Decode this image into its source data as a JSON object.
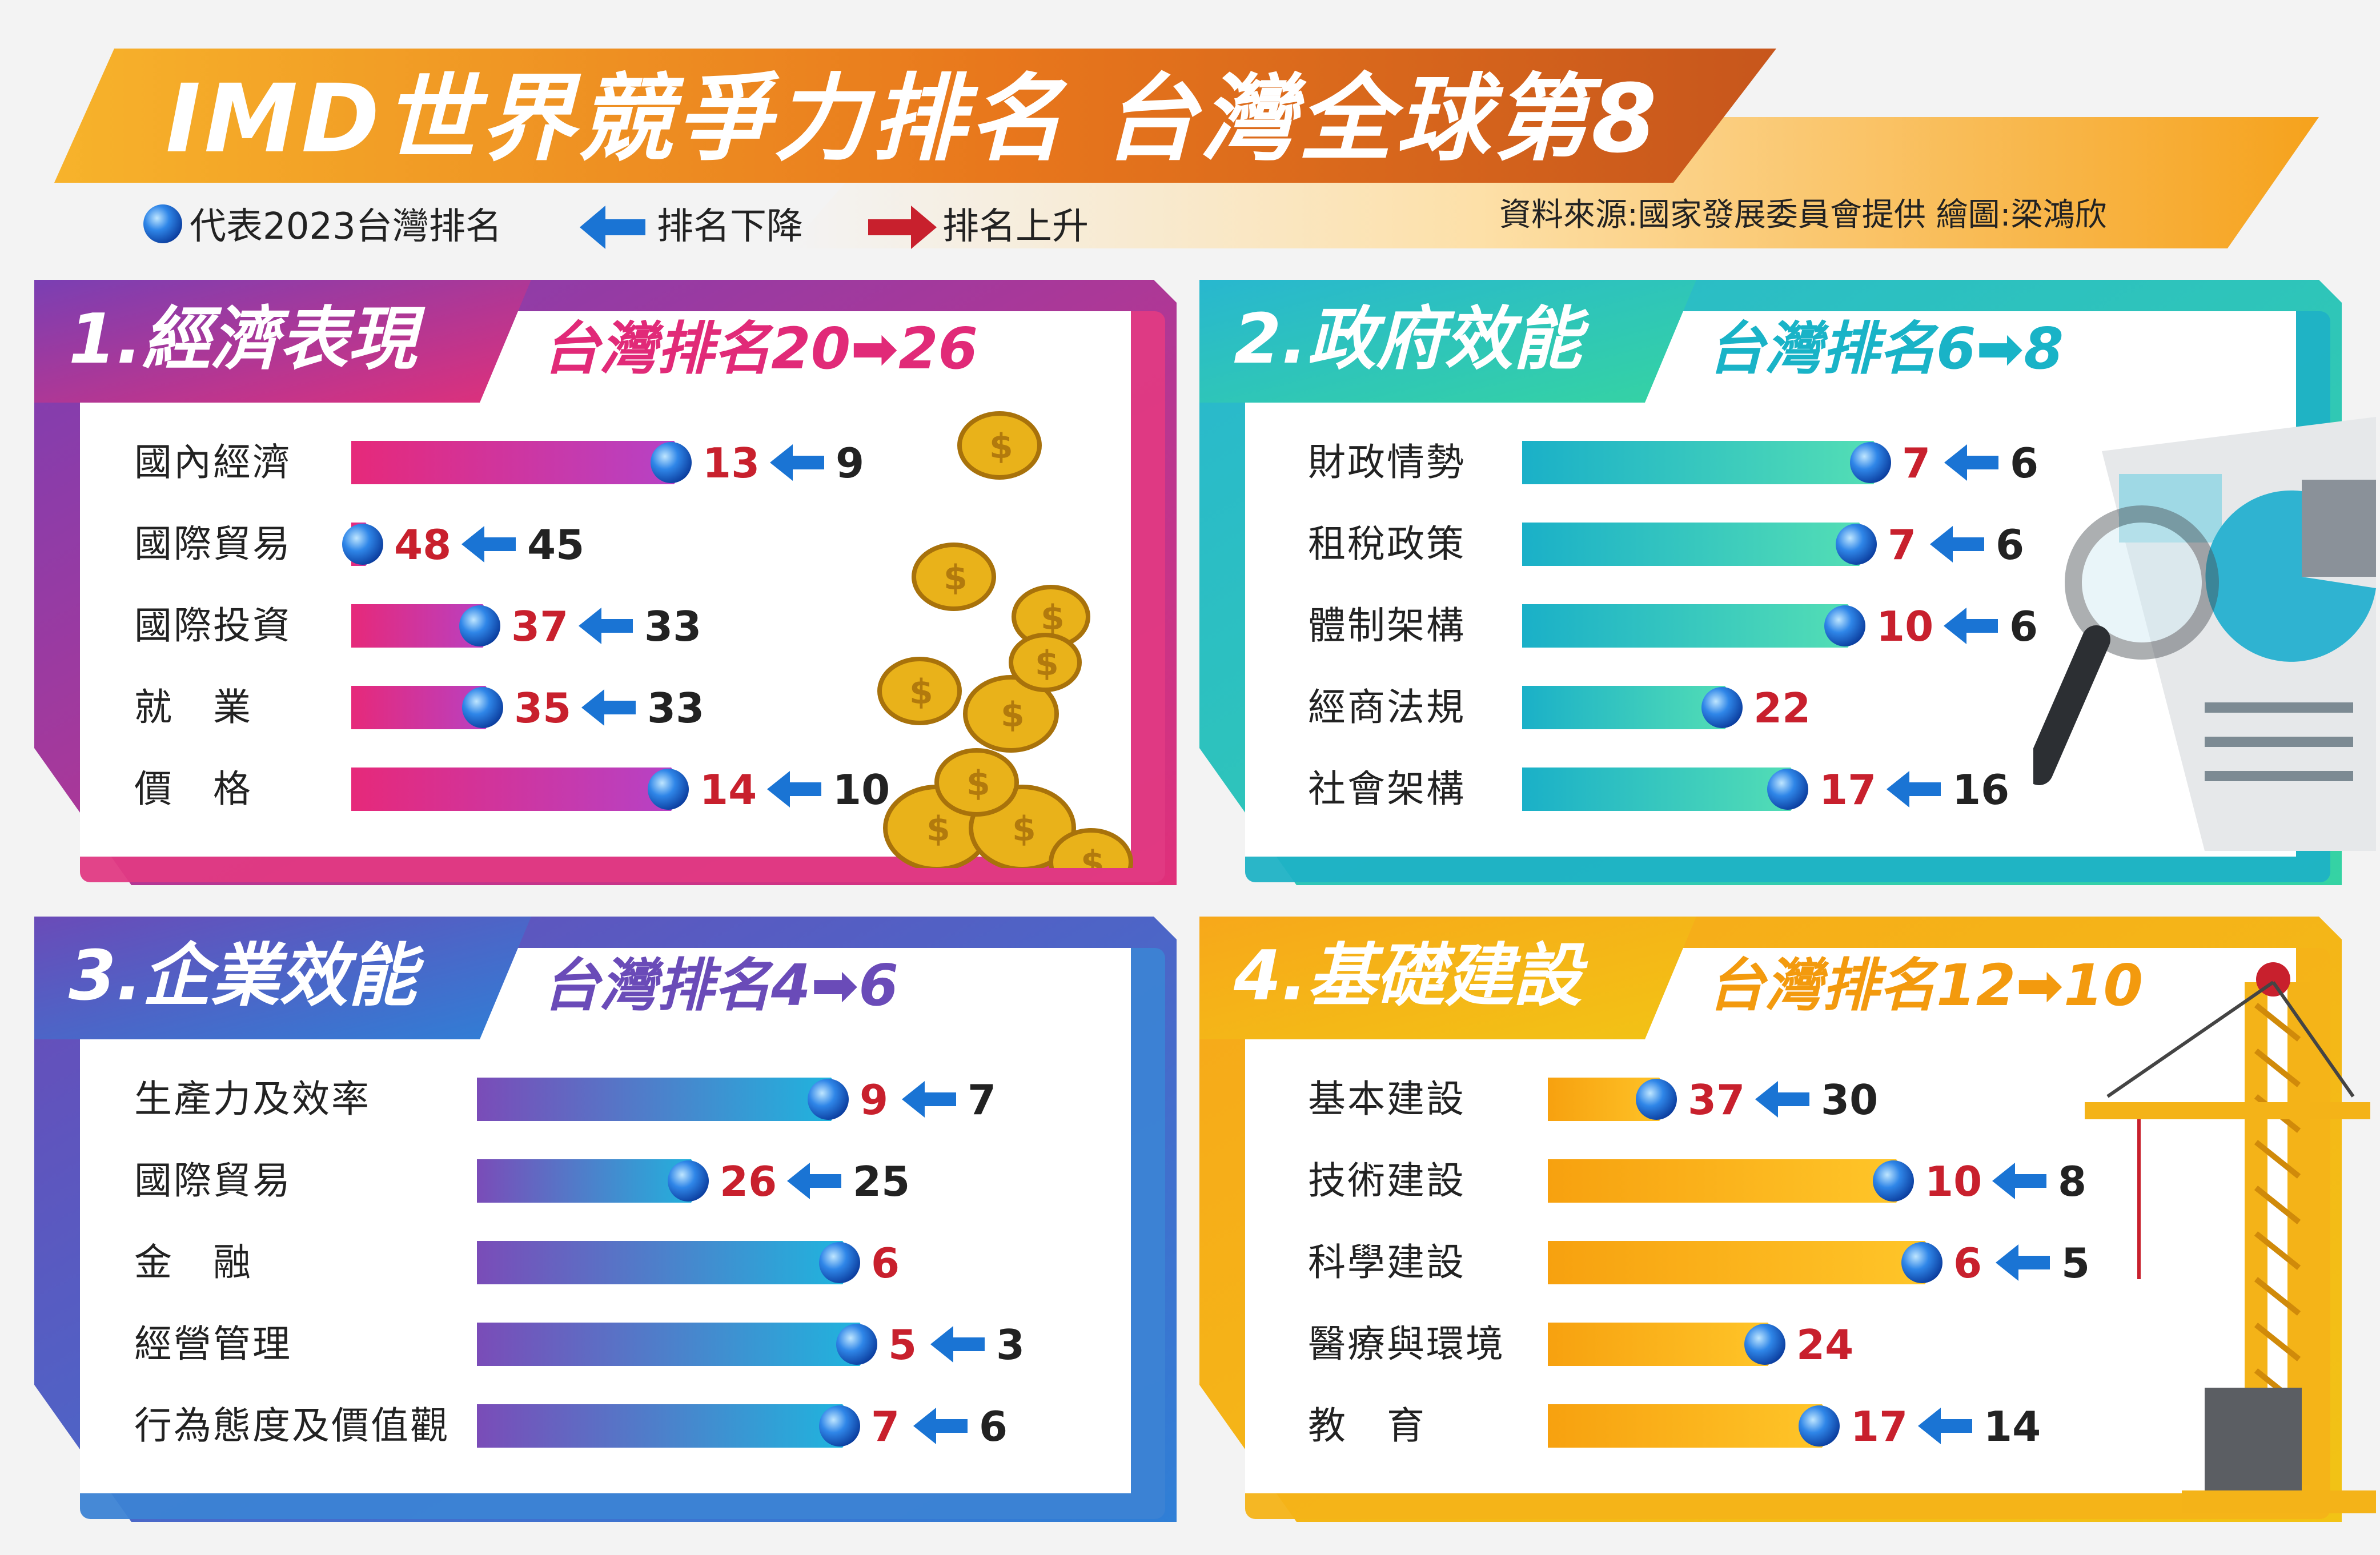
{
  "header": {
    "title": "IMD世界競爭力排名 台灣全球第8",
    "legend": {
      "dot_label": "代表2023台灣排名",
      "down_label": "排名下降",
      "up_label": "排名上升"
    },
    "source": "資料來源:國家發展委員會提供 繪圖:梁鴻欣"
  },
  "colors": {
    "down_arrow": "#1a74d4",
    "up_arrow": "#c8202d",
    "rank_red": "#c8202d",
    "rank_black": "#222222"
  },
  "icons": [
    "globe-dot-icon",
    "left-arrow-icon",
    "right-arrow-icon",
    "gold-coins-illustration",
    "magnifier-document-illustration",
    "construction-crane-illustration"
  ],
  "chart_data": [
    {
      "type": "bar",
      "title": "1.經濟表現",
      "subtitle": "台灣排名20➡26",
      "header_color": "#e12a78",
      "categories": [
        "國內經濟",
        "國際貿易",
        "國際投資",
        "就　業",
        "價　格"
      ],
      "values_2023": [
        13,
        48,
        37,
        35,
        14
      ],
      "values_2022": [
        9,
        45,
        33,
        33,
        10
      ],
      "change_labels": [
        "13",
        "48",
        "37",
        "35",
        "14"
      ],
      "prev_labels": [
        "9",
        "45",
        "33",
        "33",
        "10"
      ]
    },
    {
      "type": "bar",
      "title": "2.政府效能",
      "subtitle": "台灣排名6➡8",
      "header_color": "#19b3c7",
      "categories": [
        "財政情勢",
        "租稅政策",
        "體制架構",
        "經商法規",
        "社會架構"
      ],
      "values_2023": [
        7,
        7,
        10,
        22,
        17
      ],
      "values_2022": [
        6,
        6,
        6,
        null,
        16
      ],
      "change_labels": [
        "7",
        "7",
        "10",
        "22",
        "17"
      ],
      "prev_labels": [
        "6",
        "6",
        "6",
        "",
        "16"
      ]
    },
    {
      "type": "bar",
      "title": "3.企業效能",
      "subtitle": "台灣排名4➡6",
      "header_color": "#6a4bb8",
      "categories": [
        "生產力及效率",
        "國際貿易",
        "金　融",
        "經營管理",
        "行為態度及價值觀"
      ],
      "values_2023": [
        9,
        26,
        6,
        5,
        7
      ],
      "values_2022": [
        7,
        25,
        null,
        3,
        6
      ],
      "change_labels": [
        "9",
        "26",
        "6",
        "5",
        "7"
      ],
      "prev_labels": [
        "7",
        "25",
        "",
        "3",
        "6"
      ]
    },
    {
      "type": "bar",
      "title": "4.基礎建設",
      "subtitle": "台灣排名12➡10",
      "header_color": "#f39a0e",
      "categories": [
        "基本建設",
        "技術建設",
        "科學建設",
        "醫療與環境",
        "教　育"
      ],
      "values_2023": [
        37,
        10,
        6,
        24,
        17
      ],
      "values_2022": [
        30,
        8,
        5,
        null,
        14
      ],
      "change_labels": [
        "37",
        "10",
        "6",
        "24",
        "17"
      ],
      "prev_labels": [
        "30",
        "8",
        "5",
        "",
        "14"
      ]
    }
  ]
}
